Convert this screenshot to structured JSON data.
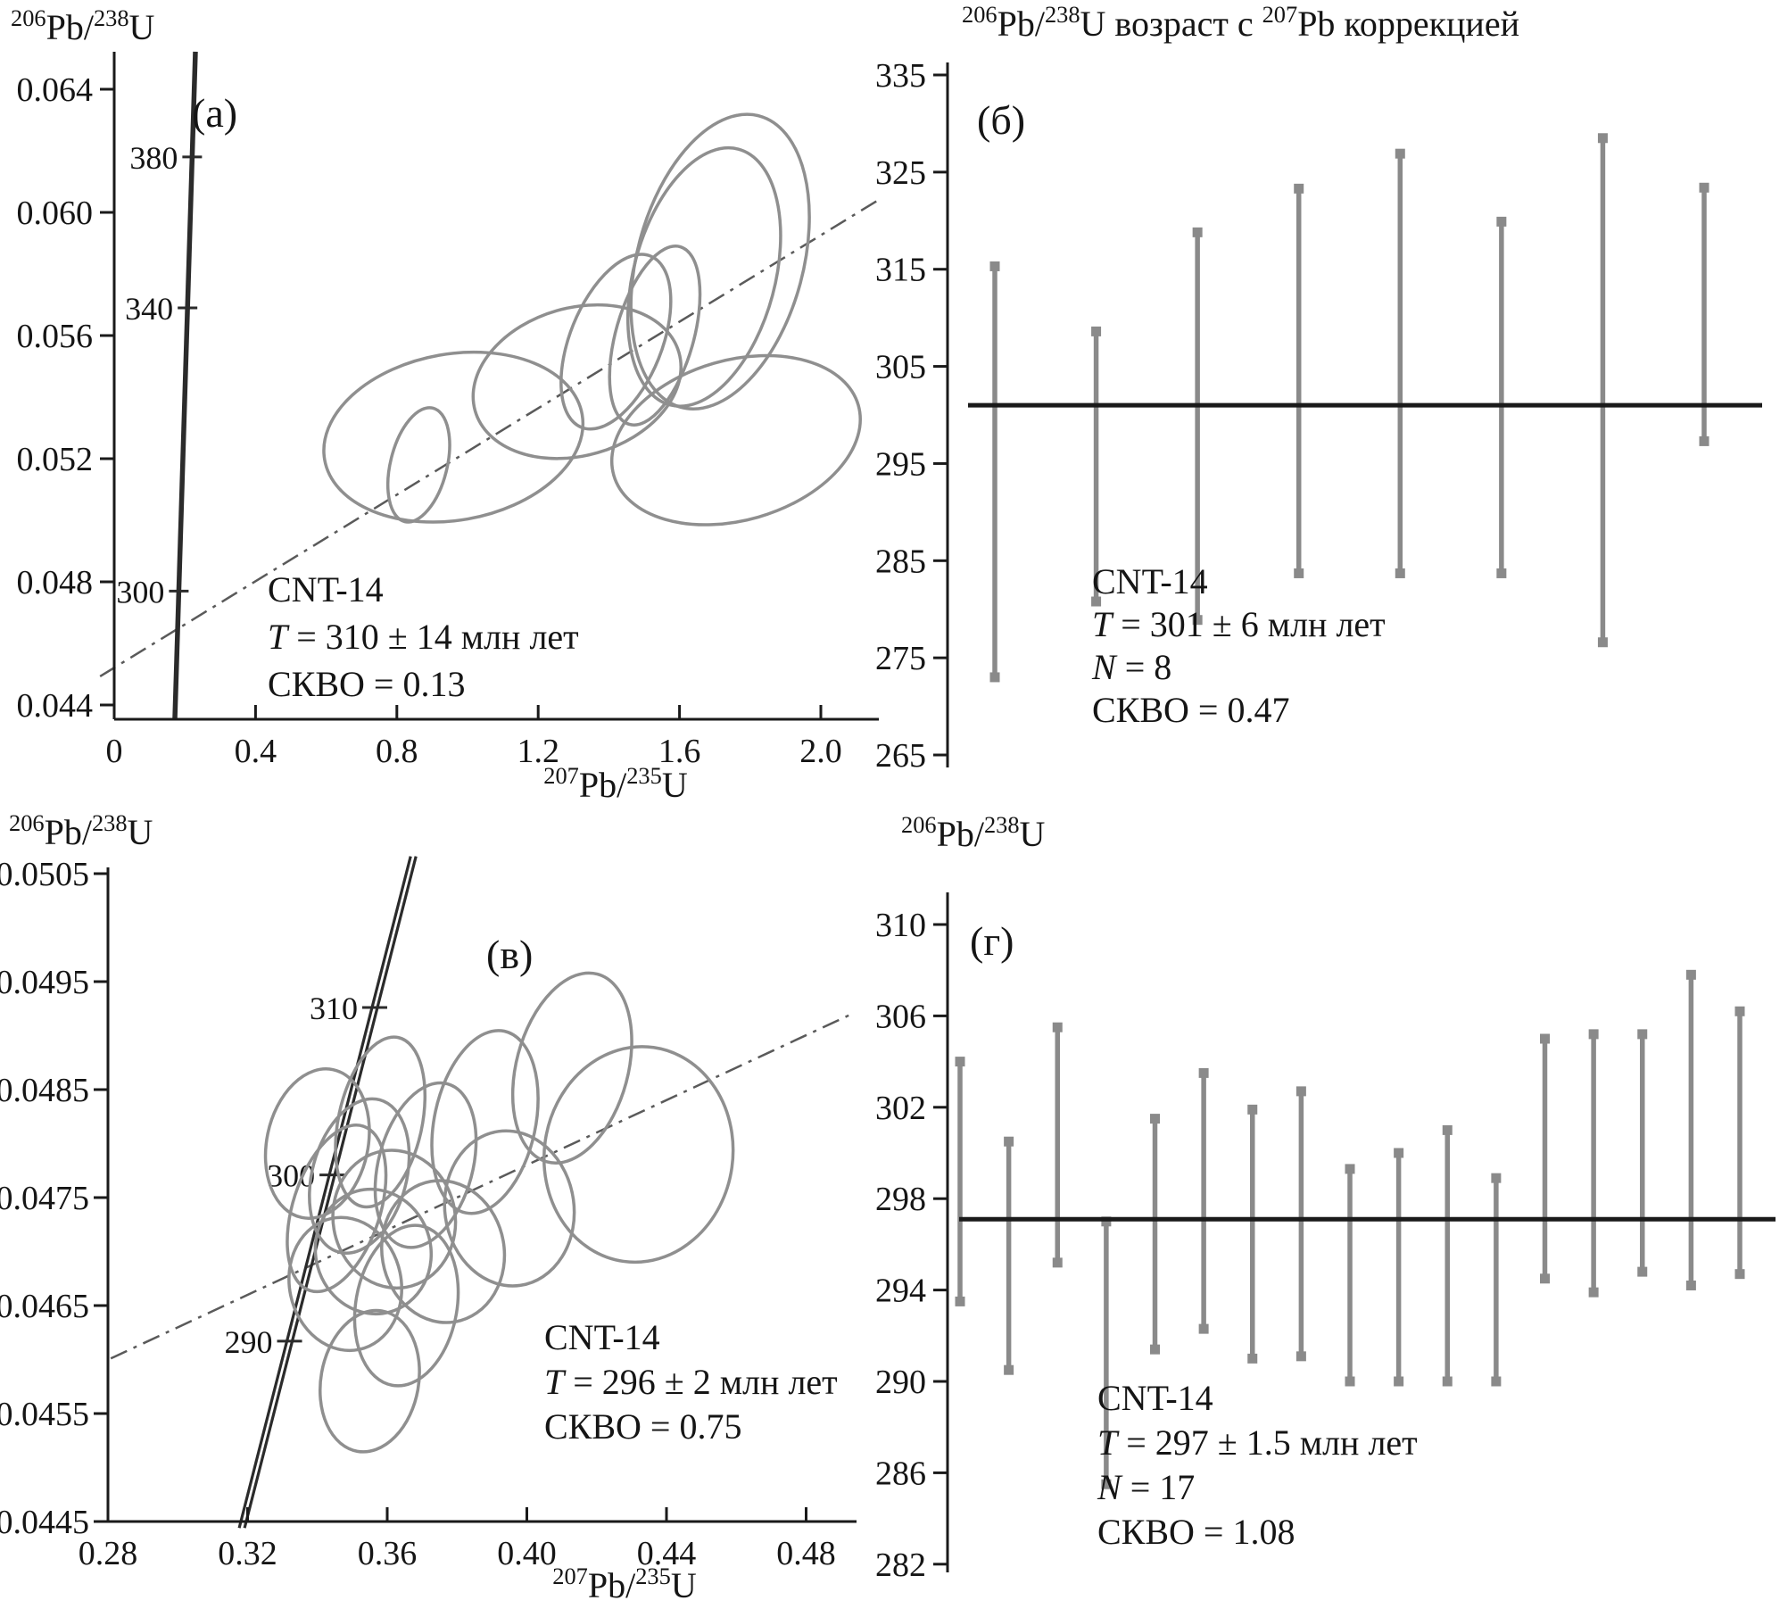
{
  "figure": {
    "sample": "CNT-14",
    "colors": {
      "axis": "#1a1a1a",
      "text": "#151515",
      "ellipse": "#8f8f8f",
      "bar": "#8a8a8a",
      "mean_line": "#1a1a1a",
      "concordia": "#2b2b2b",
      "isochron_dash": "#5a5a5a",
      "background": "#ffffff"
    }
  },
  "chart_data": [
    {
      "id": "a",
      "type": "scatter",
      "kind": "concordia",
      "panel_label": "(а)",
      "ylabel": "^{206}Pb/^{238}U",
      "xlabel": "^{207}Pb/^{235}U",
      "xlim": [
        0,
        2.16
      ],
      "ylim": [
        0.0435,
        0.0652
      ],
      "x_ticks": [
        {
          "l": "0",
          "v": 0
        },
        {
          "l": "0.4",
          "v": 0.4
        },
        {
          "l": "0.8",
          "v": 0.8
        },
        {
          "l": "1.2",
          "v": 1.2
        },
        {
          "l": "1.6",
          "v": 1.6
        },
        {
          "l": "2.0",
          "v": 2.0
        }
      ],
      "y_ticks": [
        {
          "l": "0.064",
          "v": 0.064
        },
        {
          "l": "0.060",
          "v": 0.06
        },
        {
          "l": "0.056",
          "v": 0.056
        },
        {
          "l": "0.052",
          "v": 0.052
        },
        {
          "l": "0.048",
          "v": 0.048
        },
        {
          "l": "0.044",
          "v": 0.044
        }
      ],
      "concordia_line": {
        "x1": 0.1717,
        "y1": 0.04354,
        "x2": 0.2298,
        "y2": 0.06522,
        "double": false
      },
      "concordia_age_marks": [
        {
          "l": "380",
          "v": 0.0618
        },
        {
          "l": "340",
          "v": 0.0569
        },
        {
          "l": "300",
          "v": 0.0477
        }
      ],
      "isochron": {
        "x1": -0.04,
        "y1": 0.04493,
        "x2": 2.164,
        "y2": 0.06041
      },
      "ellipses": [
        [
          0.862,
          0.0518,
          0.08,
          0.0019,
          14
        ],
        [
          0.96,
          0.0527,
          0.37,
          0.0027,
          -10
        ],
        [
          1.31,
          0.0545,
          0.3,
          0.0024,
          -16
        ],
        [
          1.42,
          0.0558,
          0.13,
          0.003,
          22
        ],
        [
          1.53,
          0.056,
          0.11,
          0.003,
          16
        ],
        [
          1.67,
          0.0579,
          0.2,
          0.0043,
          15
        ],
        [
          1.715,
          0.0584,
          0.235,
          0.0049,
          15
        ],
        [
          1.76,
          0.0526,
          0.36,
          0.0026,
          -16
        ]
      ],
      "annotation": [
        {
          "i": "",
          "t": "CNT-14"
        },
        {
          "i": "T",
          "t": " = 310 ± 14 млн лет"
        },
        {
          "i": "",
          "t": "СКВО = 0.13"
        }
      ]
    },
    {
      "id": "b",
      "type": "bar",
      "kind": "bars",
      "panel_label": "(б)",
      "title": "^{206}Pb/^{238}U возраст с ^{207}Pb коррекцией",
      "ylim": [
        265,
        335
      ],
      "y_ticks": [
        {
          "l": "335",
          "v": 335
        },
        {
          "l": "325",
          "v": 325
        },
        {
          "l": "315",
          "v": 315
        },
        {
          "l": "305",
          "v": 305
        },
        {
          "l": "295",
          "v": 295
        },
        {
          "l": "285",
          "v": 285
        },
        {
          "l": "275",
          "v": 275
        },
        {
          "l": "265",
          "v": 265
        }
      ],
      "mean": 301,
      "bars": [
        [
          273.0,
          315.3
        ],
        [
          280.8,
          308.6
        ],
        [
          278.9,
          318.8
        ],
        [
          283.7,
          323.3
        ],
        [
          283.7,
          326.9
        ],
        [
          283.7,
          319.9
        ],
        [
          276.6,
          328.5
        ],
        [
          297.3,
          323.4
        ]
      ],
      "annotation": [
        {
          "i": "",
          "t": "CNT-14"
        },
        {
          "i": "T",
          "t": " = 301 ± 6 млн лет"
        },
        {
          "i": "N",
          "t": " = 8"
        },
        {
          "i": "",
          "t": "СКВО = 0.47"
        }
      ]
    },
    {
      "id": "c",
      "type": "scatter",
      "kind": "concordia",
      "panel_label": "(в)",
      "ylabel": "^{206}Pb/^{238}U",
      "xlabel": "^{207}Pb/^{235}U",
      "xlim": [
        0.28,
        0.493
      ],
      "ylim": [
        0.0445,
        0.0505
      ],
      "x_ticks": [
        {
          "l": "0.28",
          "v": 0.28
        },
        {
          "l": "0.32",
          "v": 0.32
        },
        {
          "l": "0.36",
          "v": 0.36
        },
        {
          "l": "0.40",
          "v": 0.4
        },
        {
          "l": "0.44",
          "v": 0.44
        },
        {
          "l": "0.48",
          "v": 0.48
        }
      ],
      "y_ticks": [
        {
          "l": "0.0505",
          "v": 0.0505
        },
        {
          "l": "0.0495",
          "v": 0.0495
        },
        {
          "l": "0.0485",
          "v": 0.0485
        },
        {
          "l": "0.0475",
          "v": 0.0475
        },
        {
          "l": "0.0465",
          "v": 0.0465
        },
        {
          "l": "0.0455",
          "v": 0.0455
        },
        {
          "l": "0.0445",
          "v": 0.0445
        }
      ],
      "concordia_line": {
        "x1": 0.3176,
        "y1": 0.04444,
        "x2": 0.3667,
        "y2": 0.05066,
        "double": true
      },
      "concordia_age_marks": [
        {
          "l": "310",
          "v": 0.04926
        },
        {
          "l": "300",
          "v": 0.04771
        },
        {
          "l": "290",
          "v": 0.04617
        }
      ],
      "isochron": {
        "x1": 0.2808,
        "y1": 0.04601,
        "x2": 0.4924,
        "y2": 0.04919
      },
      "ellipses": [
        [
          0.34,
          0.048,
          0.0145,
          0.0007,
          12
        ],
        [
          0.3455,
          0.0474,
          0.0125,
          0.0008,
          18
        ],
        [
          0.348,
          0.0467,
          0.016,
          0.00062,
          -12
        ],
        [
          0.352,
          0.0477,
          0.0135,
          0.00073,
          15
        ],
        [
          0.356,
          0.047,
          0.0165,
          0.00058,
          -15
        ],
        [
          0.358,
          0.0482,
          0.012,
          0.0008,
          12
        ],
        [
          0.362,
          0.0473,
          0.0175,
          0.00064,
          -10
        ],
        [
          0.3655,
          0.0465,
          0.0145,
          0.00075,
          10
        ],
        [
          0.371,
          0.0478,
          0.0135,
          0.00078,
          15
        ],
        [
          0.376,
          0.047,
          0.0175,
          0.00066,
          -10
        ],
        [
          0.388,
          0.0482,
          0.0145,
          0.00086,
          12
        ],
        [
          0.395,
          0.0474,
          0.0185,
          0.00072,
          -8
        ],
        [
          0.432,
          0.0479,
          0.027,
          0.001,
          8
        ],
        [
          0.413,
          0.0487,
          0.016,
          0.0009,
          15
        ],
        [
          0.355,
          0.0458,
          0.014,
          0.00066,
          10
        ]
      ],
      "annotation": [
        {
          "i": "",
          "t": "CNT-14"
        },
        {
          "i": "T",
          "t": " = 296 ± 2 млн лет"
        },
        {
          "i": "",
          "t": "СКВО = 0.75"
        }
      ]
    },
    {
      "id": "d",
      "type": "bar",
      "kind": "bars",
      "panel_label": "(г)",
      "ylabel": "^{206}Pb/^{238}U",
      "ylim": [
        282,
        310
      ],
      "y_ticks": [
        {
          "l": "310",
          "v": 310
        },
        {
          "l": "306",
          "v": 306
        },
        {
          "l": "302",
          "v": 302
        },
        {
          "l": "298",
          "v": 298
        },
        {
          "l": "294",
          "v": 294
        },
        {
          "l": "290",
          "v": 290
        },
        {
          "l": "286",
          "v": 286
        },
        {
          "l": "282",
          "v": 282
        }
      ],
      "mean": 297.1,
      "bars": [
        [
          293.5,
          304.0
        ],
        [
          290.5,
          300.5
        ],
        [
          295.2,
          305.5
        ],
        [
          285.5,
          297.0
        ],
        [
          291.4,
          301.5
        ],
        [
          292.3,
          303.5
        ],
        [
          291.0,
          301.9
        ],
        [
          291.1,
          302.7
        ],
        [
          290.0,
          299.3
        ],
        [
          290.0,
          300.0
        ],
        [
          290.0,
          301.0
        ],
        [
          290.0,
          298.9
        ],
        [
          294.5,
          305.0
        ],
        [
          293.9,
          305.2
        ],
        [
          294.8,
          305.2
        ],
        [
          294.2,
          307.8
        ],
        [
          294.7,
          306.2
        ]
      ],
      "annotation": [
        {
          "i": "",
          "t": "CNT-14"
        },
        {
          "i": "T",
          "t": " = 297 ± 1.5 млн лет"
        },
        {
          "i": "N",
          "t": " = 17"
        },
        {
          "i": "",
          "t": "СКВО = 1.08"
        }
      ]
    }
  ]
}
